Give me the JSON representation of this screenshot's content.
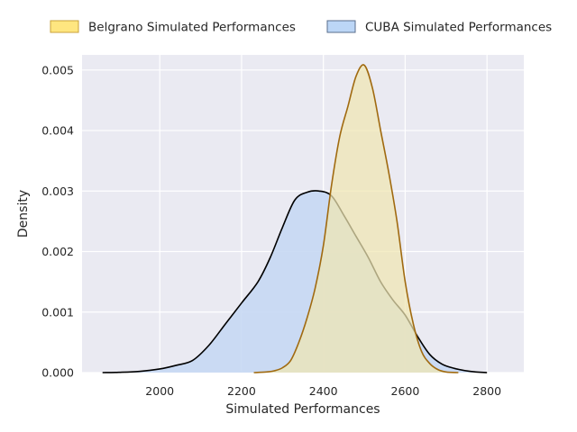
{
  "chart_data": {
    "type": "area",
    "title": "",
    "xlabel": "Simulated Performances",
    "ylabel": "Density",
    "xlim": [
      1810,
      2890
    ],
    "ylim": [
      0,
      0.00525
    ],
    "x_ticks": [
      "2000",
      "2200",
      "2400",
      "2600",
      "2800"
    ],
    "x_tick_values": [
      2000,
      2200,
      2400,
      2600,
      2800
    ],
    "y_ticks": [
      "0.000",
      "0.001",
      "0.002",
      "0.003",
      "0.004",
      "0.005"
    ],
    "y_tick_values": [
      0,
      0.001,
      0.002,
      0.003,
      0.004,
      0.005
    ],
    "grid": true,
    "legend_position": "top",
    "series": [
      {
        "name": "Belgrano Simulated Performances",
        "fill_color": "#f0e6b2",
        "legend_fill": "#ffe680",
        "legend_edge": "#c8a23a",
        "line_color": "#a06a10",
        "points": [
          [
            2230,
            0.0
          ],
          [
            2260,
            1e-05
          ],
          [
            2280,
            3e-05
          ],
          [
            2300,
            8e-05
          ],
          [
            2320,
            0.0002
          ],
          [
            2340,
            0.0005
          ],
          [
            2360,
            0.0009
          ],
          [
            2380,
            0.0014
          ],
          [
            2400,
            0.0021
          ],
          [
            2420,
            0.0031
          ],
          [
            2440,
            0.0039
          ],
          [
            2460,
            0.0044
          ],
          [
            2480,
            0.0049
          ],
          [
            2500,
            0.00508
          ],
          [
            2520,
            0.0047
          ],
          [
            2540,
            0.004
          ],
          [
            2560,
            0.0033
          ],
          [
            2580,
            0.0025
          ],
          [
            2600,
            0.0015
          ],
          [
            2620,
            0.0008
          ],
          [
            2640,
            0.00035
          ],
          [
            2660,
            0.00015
          ],
          [
            2680,
            5e-05
          ],
          [
            2700,
            1e-05
          ],
          [
            2730,
            0.0
          ]
        ]
      },
      {
        "name": "CUBA Simulated Performances",
        "fill_color": "#c7d8f3",
        "legend_fill": "#bcd6f6",
        "legend_edge": "#5a6e8c",
        "line_color": "#000000",
        "points": [
          [
            1860,
            0.0
          ],
          [
            1900,
            5e-06
          ],
          [
            1950,
            2e-05
          ],
          [
            2000,
            6e-05
          ],
          [
            2040,
            0.00012
          ],
          [
            2080,
            0.0002
          ],
          [
            2120,
            0.00045
          ],
          [
            2160,
            0.0008
          ],
          [
            2200,
            0.00115
          ],
          [
            2240,
            0.0015
          ],
          [
            2270,
            0.0019
          ],
          [
            2300,
            0.0024
          ],
          [
            2330,
            0.00285
          ],
          [
            2360,
            0.00298
          ],
          [
            2390,
            0.003
          ],
          [
            2420,
            0.00292
          ],
          [
            2450,
            0.0026
          ],
          [
            2480,
            0.00225
          ],
          [
            2510,
            0.0019
          ],
          [
            2540,
            0.0015
          ],
          [
            2570,
            0.0012
          ],
          [
            2600,
            0.00095
          ],
          [
            2630,
            0.0006
          ],
          [
            2660,
            0.0003
          ],
          [
            2690,
            0.00014
          ],
          [
            2720,
            7e-05
          ],
          [
            2760,
            2e-05
          ],
          [
            2800,
            0.0
          ]
        ]
      }
    ]
  }
}
